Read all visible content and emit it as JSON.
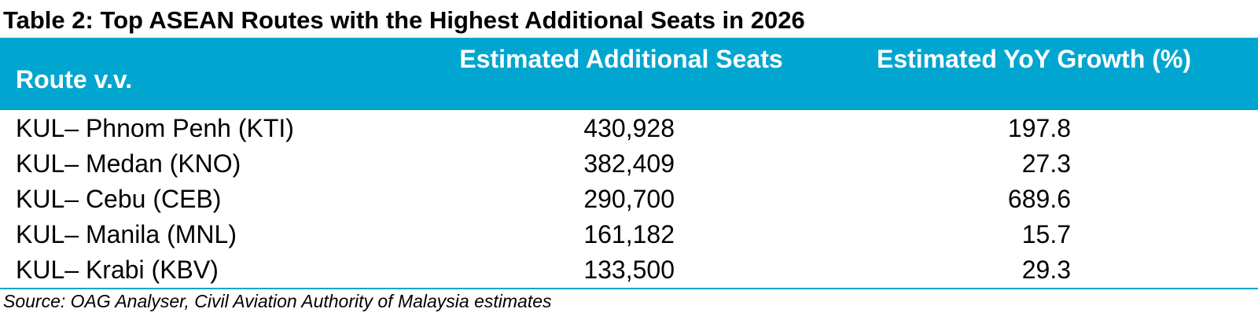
{
  "title": "Table 2: Top ASEAN Routes with the Highest Additional Seats in 2026",
  "table": {
    "header": [
      "Route v.v.",
      "Estimated Additional Seats",
      "Estimated YoY Growth (%)"
    ],
    "rows": [
      [
        "KUL– Phnom Penh (KTI)",
        "430,928",
        "197.8"
      ],
      [
        "KUL– Medan (KNO)",
        "382,409",
        "27.3"
      ],
      [
        "KUL– Cebu (CEB)",
        "290,700",
        "689.6"
      ],
      [
        "KUL– Manila (MNL)",
        "161,182",
        "15.7"
      ],
      [
        "KUL– Krabi (KBV)",
        "133,500",
        "29.3"
      ]
    ]
  },
  "source": "Source: OAG Analyser, Civil Aviation Authority of Malaysia estimates"
}
